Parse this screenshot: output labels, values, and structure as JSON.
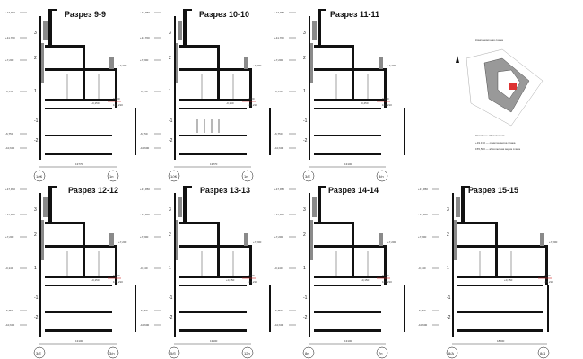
{
  "sections": [
    {
      "title": "Разрез 9-9",
      "axes": [
        "1/Ж",
        "1н"
      ],
      "dim": "13770",
      "red": "0,000",
      "mark": "-0,150"
    },
    {
      "title": "Разрез 10-10",
      "axes": [
        "1/Ж",
        "1н"
      ],
      "dim": "13770",
      "red": "0,000",
      "mark": "-0,150"
    },
    {
      "title": "Разрез 11-11",
      "axes": [
        "3/Е",
        "3/н"
      ],
      "dim": "13100",
      "red": "0,000",
      "mark": "-0,450"
    },
    {
      "title": "Разрез 12-12",
      "axes": [
        "3/Е",
        "3/н"
      ],
      "dim": "13100",
      "red": "0,000",
      "mark": "-0,150"
    },
    {
      "title": "Разрез 13-13",
      "axes": [
        "5/б",
        "12н"
      ],
      "dim": "13100",
      "red": "0,000",
      "mark": "+0,150"
    },
    {
      "title": "Разрез 14-14",
      "axes": [
        "8н",
        "7н"
      ],
      "dim": "13100",
      "red": "0,000",
      "mark": "+0,150"
    },
    {
      "title": "Разрез 15-15",
      "axes": [
        "8/А",
        "8/Д"
      ],
      "dim": "18000",
      "red": "0,000",
      "mark": "+0,150"
    }
  ],
  "levels": [
    "+17,950",
    "+11,700",
    "+7,200",
    "-0,140",
    "-6,750",
    "-10,600"
  ],
  "floor_numbers": [
    "3",
    "2",
    "1",
    "-1",
    "-2"
  ],
  "level_labels": [
    "+7,200",
    "136,210"
  ],
  "scheme": {
    "title": "Компоновочная схема",
    "legend_title": "Условные обозначения",
    "legend_1": "+19,150 — отметка верха этажа",
    "legend_2": "155,560 — абсолютная верха этажа"
  },
  "colors": {
    "red": "#cc2222",
    "hatch": "#8a8a8a"
  }
}
